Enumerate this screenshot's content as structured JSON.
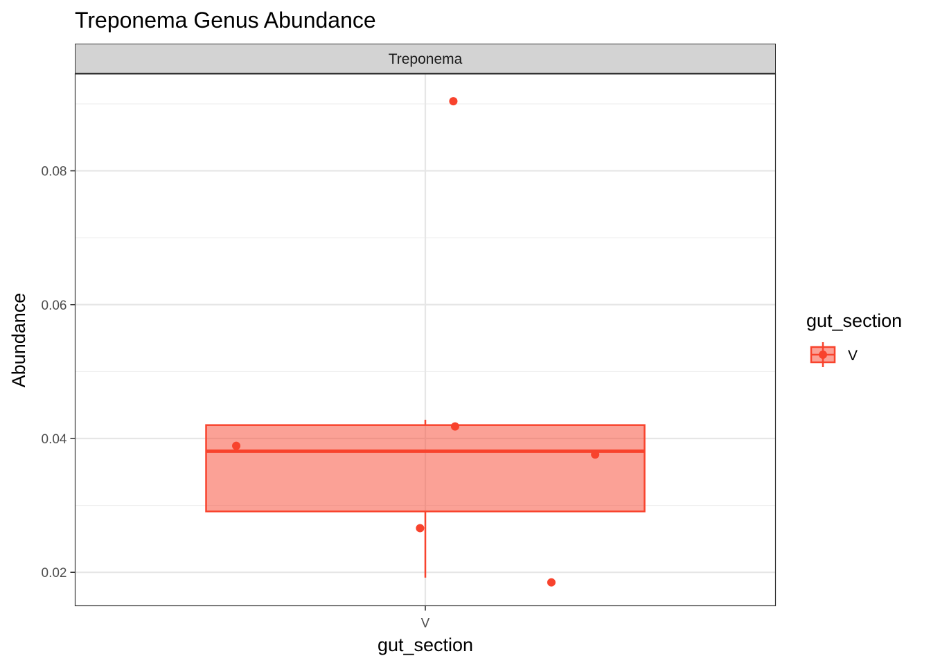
{
  "chart_data": {
    "type": "box",
    "title": "Treponema Genus Abundance",
    "facet_label": "Treponema",
    "xlabel": "gut_section",
    "ylabel": "Abundance",
    "categories": [
      "V"
    ],
    "ylim": [
      0.015,
      0.0945
    ],
    "yticks": [
      0.02,
      0.04,
      0.06,
      0.08
    ],
    "ytick_labels": [
      "0.02",
      "0.04",
      "0.06",
      "0.08"
    ],
    "grid": true,
    "color": "#f8432d",
    "fill": "#fa9c8f",
    "series": [
      {
        "name": "V",
        "box": {
          "q1": 0.0291,
          "median": 0.0381,
          "q3": 0.042,
          "whisker_low": 0.0192,
          "whisker_high": 0.0428
        },
        "points": [
          {
            "jitter": -0.54,
            "y": 0.0389
          },
          {
            "jitter": 0.08,
            "y": 0.0904
          },
          {
            "jitter": 0.085,
            "y": 0.0418
          },
          {
            "jitter": -0.015,
            "y": 0.0266
          },
          {
            "jitter": 0.485,
            "y": 0.0376
          },
          {
            "jitter": 0.36,
            "y": 0.0185
          }
        ]
      }
    ],
    "legend": {
      "title": "gut_section",
      "entries": [
        "V"
      ],
      "position": "right"
    }
  }
}
